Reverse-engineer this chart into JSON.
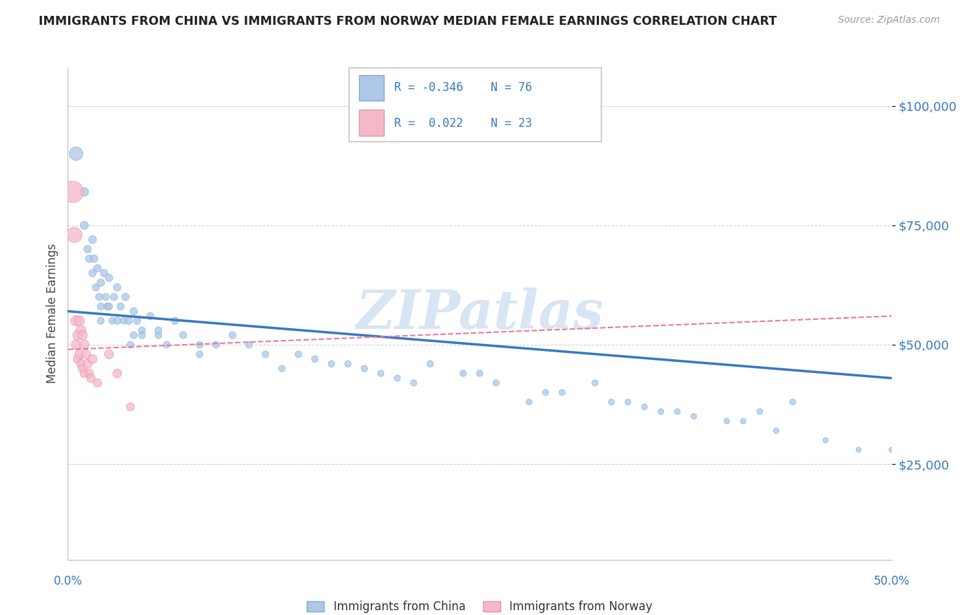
{
  "title": "IMMIGRANTS FROM CHINA VS IMMIGRANTS FROM NORWAY MEDIAN FEMALE EARNINGS CORRELATION CHART",
  "source": "Source: ZipAtlas.com",
  "ylabel": "Median Female Earnings",
  "y_ticks": [
    25000,
    50000,
    75000,
    100000
  ],
  "y_tick_labels": [
    "$25,000",
    "$50,000",
    "$75,000",
    "$100,000"
  ],
  "x_min": 0.0,
  "x_max": 0.5,
  "y_min": 5000,
  "y_max": 108000,
  "china_color": "#aec6e8",
  "norway_color": "#f4b8c8",
  "china_edge_color": "#7aafd4",
  "norway_edge_color": "#e890a8",
  "china_line_color": "#3878c0",
  "norway_line_color": "#e87898",
  "watermark": "ZIPatlas",
  "china_line_x0": 0.0,
  "china_line_y0": 57000,
  "china_line_x1": 0.5,
  "china_line_y1": 43000,
  "norway_line_x0": 0.0,
  "norway_line_y0": 49000,
  "norway_line_x1": 0.5,
  "norway_line_y1": 56000,
  "china_scatter": {
    "x": [
      0.005,
      0.01,
      0.01,
      0.012,
      0.013,
      0.015,
      0.015,
      0.016,
      0.017,
      0.018,
      0.019,
      0.02,
      0.02,
      0.02,
      0.022,
      0.023,
      0.024,
      0.025,
      0.025,
      0.027,
      0.028,
      0.03,
      0.03,
      0.032,
      0.034,
      0.035,
      0.037,
      0.04,
      0.04,
      0.042,
      0.045,
      0.05,
      0.055,
      0.06,
      0.065,
      0.07,
      0.08,
      0.09,
      0.1,
      0.11,
      0.12,
      0.13,
      0.14,
      0.16,
      0.18,
      0.2,
      0.22,
      0.24,
      0.26,
      0.28,
      0.3,
      0.32,
      0.34,
      0.36,
      0.38,
      0.4,
      0.42,
      0.44,
      0.46,
      0.48,
      0.5,
      0.35,
      0.25,
      0.15,
      0.08,
      0.055,
      0.045,
      0.038,
      0.17,
      0.19,
      0.21,
      0.29,
      0.33,
      0.37,
      0.41,
      0.43
    ],
    "y": [
      90000,
      82000,
      75000,
      70000,
      68000,
      72000,
      65000,
      68000,
      62000,
      66000,
      60000,
      63000,
      58000,
      55000,
      65000,
      60000,
      58000,
      64000,
      58000,
      55000,
      60000,
      62000,
      55000,
      58000,
      55000,
      60000,
      55000,
      57000,
      52000,
      55000,
      53000,
      56000,
      52000,
      50000,
      55000,
      52000,
      48000,
      50000,
      52000,
      50000,
      48000,
      45000,
      48000,
      46000,
      45000,
      43000,
      46000,
      44000,
      42000,
      38000,
      40000,
      42000,
      38000,
      36000,
      35000,
      34000,
      36000,
      38000,
      30000,
      28000,
      28000,
      37000,
      44000,
      47000,
      50000,
      53000,
      52000,
      50000,
      46000,
      44000,
      42000,
      40000,
      38000,
      36000,
      34000,
      32000
    ],
    "sizes": [
      200,
      80,
      70,
      60,
      60,
      65,
      60,
      60,
      55,
      60,
      55,
      60,
      55,
      50,
      60,
      55,
      55,
      60,
      55,
      50,
      55,
      60,
      55,
      55,
      50,
      60,
      55,
      58,
      52,
      55,
      52,
      56,
      52,
      50,
      55,
      52,
      48,
      50,
      52,
      50,
      48,
      45,
      48,
      46,
      45,
      43,
      46,
      44,
      42,
      38,
      40,
      42,
      38,
      36,
      35,
      34,
      36,
      38,
      30,
      28,
      28,
      37,
      44,
      47,
      50,
      53,
      52,
      50,
      46,
      44,
      42,
      40,
      38,
      36,
      34,
      32
    ]
  },
  "norway_scatter": {
    "x": [
      0.003,
      0.004,
      0.005,
      0.005,
      0.006,
      0.006,
      0.007,
      0.007,
      0.008,
      0.008,
      0.009,
      0.009,
      0.01,
      0.01,
      0.011,
      0.012,
      0.013,
      0.014,
      0.015,
      0.018,
      0.025,
      0.03,
      0.038
    ],
    "y": [
      82000,
      73000,
      55000,
      50000,
      52000,
      47000,
      55000,
      48000,
      53000,
      46000,
      52000,
      45000,
      50000,
      44000,
      48000,
      46000,
      44000,
      43000,
      47000,
      42000,
      48000,
      44000,
      37000
    ],
    "sizes": [
      500,
      250,
      120,
      100,
      110,
      90,
      110,
      90,
      105,
      85,
      100,
      80,
      95,
      78,
      90,
      85,
      80,
      78,
      90,
      75,
      90,
      82,
      70
    ]
  }
}
